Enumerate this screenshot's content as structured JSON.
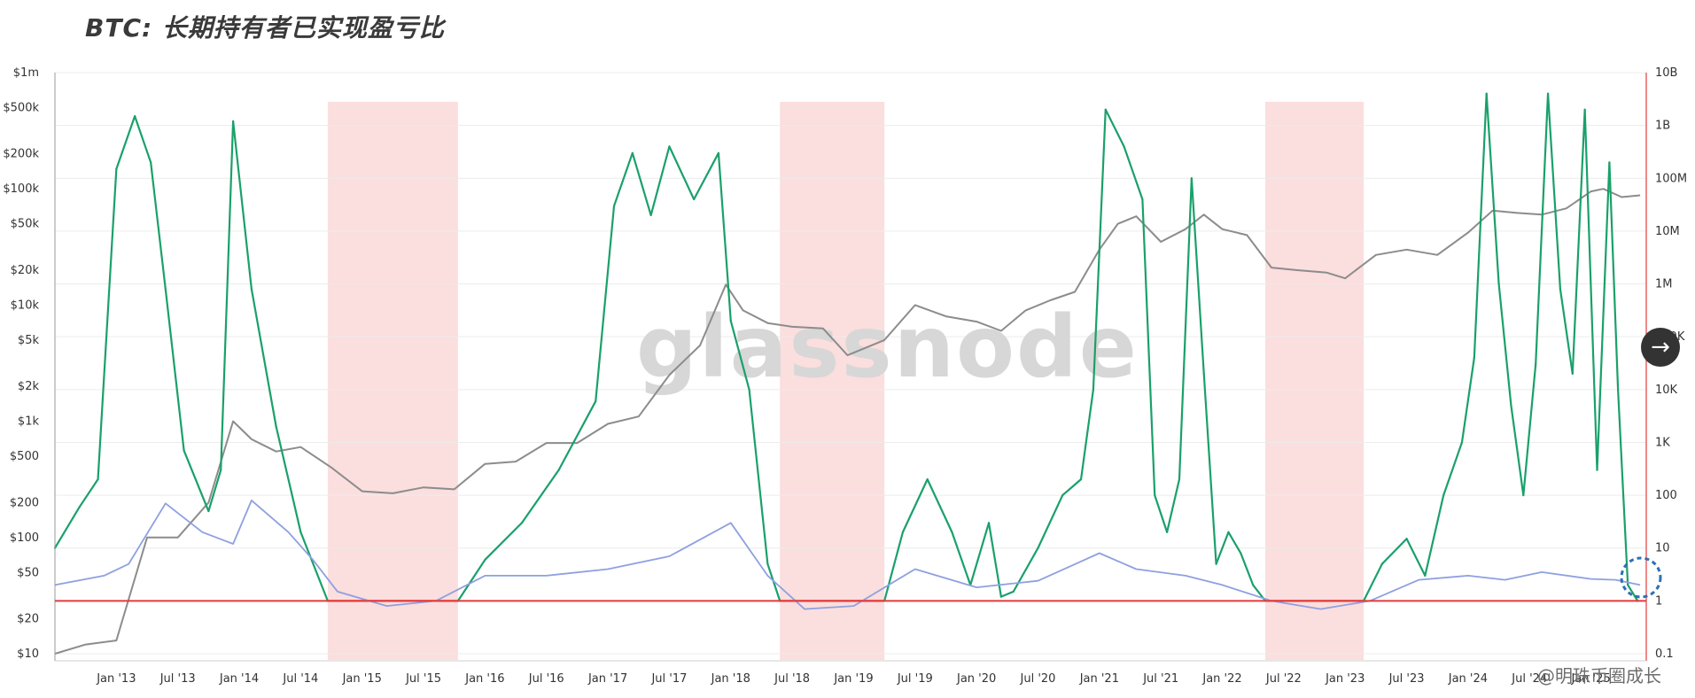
{
  "chart_data": {
    "type": "line",
    "title": "BTC: 长期持有者已实现盈亏比",
    "watermark": "glassnode",
    "credit": "@明珠币圈成长",
    "y_left_ticks": [
      "$1m",
      "$500k",
      "$200k",
      "$100k",
      "$50k",
      "$20k",
      "$10k",
      "$5k",
      "$2k",
      "$1k",
      "$500",
      "$200",
      "$100",
      "$50",
      "$20",
      "$10"
    ],
    "y_left_values": [
      1000000,
      500000,
      200000,
      100000,
      50000,
      20000,
      10000,
      5000,
      2000,
      1000,
      500,
      200,
      100,
      50,
      20,
      10
    ],
    "y_left_log_scale": true,
    "y_right_ticks": [
      "10B",
      "1B",
      "100M",
      "10M",
      "1M",
      "100K",
      "10K",
      "1K",
      "100",
      "10",
      "1",
      "0.1"
    ],
    "y_right_values": [
      10000000000,
      1000000000,
      100000000,
      10000000,
      1000000,
      100000,
      10000,
      1000,
      100,
      10,
      1,
      0.1
    ],
    "y_right_log_scale": true,
    "x_ticks": [
      "Jan '13",
      "Jul '13",
      "Jan '14",
      "Jul '14",
      "Jan '15",
      "Jul '15",
      "Jan '16",
      "Jul '16",
      "Jan '17",
      "Jul '17",
      "Jan '18",
      "Jul '18",
      "Jan '19",
      "Jul '19",
      "Jan '20",
      "Jul '20",
      "Jan '21",
      "Jul '21",
      "Jan '22",
      "Jul '22",
      "Jan '23",
      "Jul '23",
      "Jan '24",
      "Jul '24",
      "Jan '25"
    ],
    "x_tick_years": [
      2013.0,
      2013.5,
      2014.0,
      2014.5,
      2015.0,
      2015.5,
      2016.0,
      2016.5,
      2017.0,
      2017.5,
      2018.0,
      2018.5,
      2019.0,
      2019.5,
      2020.0,
      2020.5,
      2021.0,
      2021.5,
      2022.0,
      2022.5,
      2023.0,
      2023.5,
      2024.0,
      2024.5,
      2025.0
    ],
    "x_range": [
      2012.5,
      2025.45
    ],
    "y_left_range": [
      10,
      1000000
    ],
    "y_right_range": [
      0.1,
      10000000000
    ],
    "reference_line": {
      "axis": "right",
      "value": 1,
      "color": "#e23b3b"
    },
    "bear_market_shading": [
      [
        2014.72,
        2015.78
      ],
      [
        2018.4,
        2019.25
      ],
      [
        2022.35,
        2023.15
      ]
    ],
    "grid": true,
    "colors": {
      "price": "#8c8c8c",
      "profit_loss_ratio_above_1": "#1aa06b",
      "profit_loss_ratio_below_1": "#e23b3b",
      "smoothed_ratio": "#8ea0e0",
      "shading": "#fbdede",
      "right_axis": "#e23b3b"
    },
    "series": [
      {
        "axis": "left",
        "color": "#8c8c8c",
        "x": [
          2012.5,
          2012.75,
          2013.0,
          2013.25,
          2013.5,
          2013.75,
          2013.95,
          2014.1,
          2014.3,
          2014.5,
          2014.75,
          2015.0,
          2015.25,
          2015.5,
          2015.75,
          2016.0,
          2016.25,
          2016.5,
          2016.75,
          2017.0,
          2017.25,
          2017.5,
          2017.75,
          2017.96,
          2018.1,
          2018.3,
          2018.5,
          2018.75,
          2018.95,
          2019.25,
          2019.5,
          2019.75,
          2020.0,
          2020.2,
          2020.4,
          2020.6,
          2020.8,
          2021.0,
          2021.15,
          2021.3,
          2021.5,
          2021.7,
          2021.85,
          2022.0,
          2022.2,
          2022.4,
          2022.6,
          2022.85,
          2023.0,
          2023.25,
          2023.5,
          2023.75,
          2024.0,
          2024.2,
          2024.4,
          2024.6,
          2024.8,
          2025.0,
          2025.1,
          2025.25,
          2025.4
        ],
        "values": [
          10,
          12,
          13,
          100,
          100,
          200,
          1000,
          700,
          550,
          600,
          400,
          250,
          240,
          270,
          260,
          430,
          450,
          650,
          650,
          950,
          1100,
          2500,
          4500,
          15000,
          9000,
          7000,
          6500,
          6300,
          3700,
          5000,
          10000,
          8000,
          7200,
          6000,
          9000,
          11000,
          13000,
          30000,
          50000,
          58000,
          35000,
          45000,
          60000,
          45000,
          40000,
          21000,
          20000,
          19000,
          17000,
          27000,
          30000,
          27000,
          42000,
          65000,
          62000,
          60000,
          68000,
          95000,
          100000,
          85000,
          88000
        ]
      },
      {
        "axis": "right",
        "color": "#1aa06b",
        "x": [
          2012.5,
          2012.7,
          2012.85,
          2013.0,
          2013.15,
          2013.28,
          2013.4,
          2013.55,
          2013.75,
          2013.85,
          2013.95,
          2014.1,
          2014.3,
          2014.5,
          2014.72,
          2015.0,
          2015.3,
          2015.6,
          2015.78,
          2016.0,
          2016.3,
          2016.6,
          2016.9,
          2017.05,
          2017.2,
          2017.35,
          2017.5,
          2017.7,
          2017.9,
          2018.0,
          2018.15,
          2018.3,
          2018.4,
          2019.25,
          2019.4,
          2019.6,
          2019.8,
          2019.95,
          2020.1,
          2020.2,
          2020.3,
          2020.5,
          2020.7,
          2020.85,
          2020.95,
          2021.05,
          2021.2,
          2021.35,
          2021.45,
          2021.55,
          2021.65,
          2021.75,
          2021.85,
          2021.95,
          2022.05,
          2022.15,
          2022.25,
          2022.35,
          2023.15,
          2023.3,
          2023.5,
          2023.65,
          2023.8,
          2023.95,
          2024.05,
          2024.15,
          2024.25,
          2024.35,
          2024.45,
          2024.55,
          2024.65,
          2024.75,
          2024.85,
          2024.95,
          2025.05,
          2025.15,
          2025.22,
          2025.3,
          2025.38
        ],
        "values": [
          10,
          60,
          200,
          150000000,
          1500000000,
          200000000,
          800000,
          700,
          50,
          300,
          1200000000,
          800000,
          2000,
          20,
          1,
          1,
          1,
          1,
          1,
          6,
          30,
          300,
          6000,
          30000000,
          300000000,
          20000000,
          400000000,
          40000000,
          300000000,
          200000,
          10000,
          5,
          1,
          1,
          20,
          200,
          20,
          2,
          30,
          1.2,
          1.5,
          10,
          100,
          200,
          10000,
          2000000000,
          400000000,
          40000000,
          100,
          20,
          200,
          100000000,
          20000,
          5,
          20,
          8,
          2,
          1,
          1,
          5,
          15,
          3,
          100,
          1000,
          40000,
          4000000000,
          1000000,
          5000,
          100,
          30000,
          4000000000,
          800000,
          20000,
          2000000000,
          300,
          200000000,
          10000,
          2,
          1
        ]
      },
      {
        "axis": "right",
        "color": "#8ea0e0",
        "x": [
          2012.5,
          2012.9,
          2013.1,
          2013.4,
          2013.7,
          2013.95,
          2014.1,
          2014.4,
          2014.6,
          2014.8,
          2015.2,
          2015.6,
          2016.0,
          2016.5,
          2017.0,
          2017.5,
          2018.0,
          2018.3,
          2018.6,
          2019.0,
          2019.5,
          2020.0,
          2020.5,
          2021.0,
          2021.3,
          2021.7,
          2022.0,
          2022.4,
          2022.8,
          2023.2,
          2023.6,
          2024.0,
          2024.3,
          2024.6,
          2025.0,
          2025.2,
          2025.4
        ],
        "values": [
          2,
          3,
          5,
          70,
          20,
          12,
          80,
          20,
          6,
          1.5,
          0.8,
          1.0,
          3,
          3,
          4,
          7,
          30,
          3,
          0.7,
          0.8,
          4,
          1.8,
          2.4,
          8,
          4,
          3,
          2,
          1,
          0.7,
          1,
          2.5,
          3,
          2.5,
          3.5,
          2.6,
          2.5,
          2
        ]
      }
    ]
  }
}
